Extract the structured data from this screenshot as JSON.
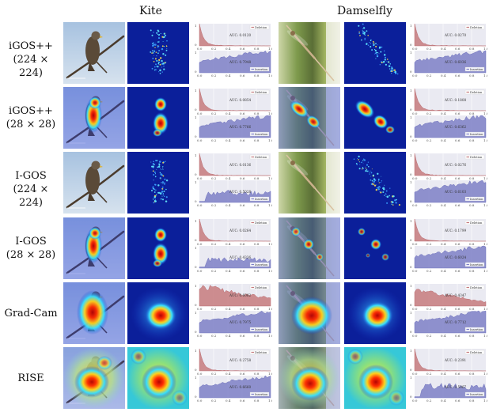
{
  "columns": [
    {
      "name": "Kite"
    },
    {
      "name": "Damselfly"
    }
  ],
  "rows": [
    {
      "label_lines": [
        "iGOS++",
        "(224 × 224)"
      ],
      "kite": {
        "deletion_auc": "AUC: 0.0120",
        "insertion_auc": "AUC: 0.7948",
        "mask": "sparse"
      },
      "damselfly": {
        "deletion_auc": "AUC: 0.0270",
        "insertion_auc": "AUC: 0.6036",
        "mask": "sparse"
      }
    },
    {
      "label_lines": [
        "iGOS++",
        "(28 × 28)"
      ],
      "kite": {
        "deletion_auc": "AUC: 0.0854",
        "insertion_auc": "AUC: 0.7766",
        "mask": "blob-small"
      },
      "damselfly": {
        "deletion_auc": "AUC: 0.1808",
        "insertion_auc": "AUC: 0.6362",
        "mask": "blob-diagonal"
      }
    },
    {
      "label_lines": [
        "I-GOS",
        "(224 × 224)"
      ],
      "kite": {
        "deletion_auc": "AUC: 0.0136",
        "insertion_auc": "AUC: 0.5028",
        "mask": "sparse"
      },
      "damselfly": {
        "deletion_auc": "AUC: 0.0276",
        "insertion_auc": "AUC: 0.6103",
        "mask": "sparse"
      }
    },
    {
      "label_lines": [
        "I-GOS",
        "(28 × 28)"
      ],
      "kite": {
        "deletion_auc": "AUC: 0.0264",
        "insertion_auc": "AUC: 0.4336",
        "mask": "blob-small"
      },
      "damselfly": {
        "deletion_auc": "AUC: 0.1799",
        "insertion_auc": "AUC: 0.6024",
        "mask": "dots"
      }
    },
    {
      "label_lines": [
        "Grad-Cam"
      ],
      "kite": {
        "deletion_auc": "AUC: 0.6062",
        "insertion_auc": "AUC: 0.7975",
        "mask": "blob-large"
      },
      "damselfly": {
        "deletion_auc": "AUC: 0.4347",
        "insertion_auc": "AUC: 0.7712",
        "mask": "blob-large"
      }
    },
    {
      "label_lines": [
        "RISE"
      ],
      "kite": {
        "deletion_auc": "AUC: 0.2758",
        "insertion_auc": "AUC: 0.6660",
        "mask": "rise"
      },
      "damselfly": {
        "deletion_auc": "AUC: 0.2391",
        "insertion_auc": "AUC: 0.5967",
        "mask": "rise"
      }
    }
  ],
  "legend": {
    "deletion": "Deletion",
    "insertion": "Insertion"
  },
  "ticks": {
    "x": [
      "0.0",
      "0.2",
      "0.4",
      "0.6",
      "0.8",
      "1.0"
    ],
    "y_top": "1",
    "y_zero": "0"
  },
  "colors": {
    "deletion_fill": "#c77c7e",
    "insertion_fill": "#7f81c7",
    "mask_bg": "#0b1f9a",
    "kite_sky": "#b9cfe6",
    "damsel_green": "#7e9a4c"
  }
}
